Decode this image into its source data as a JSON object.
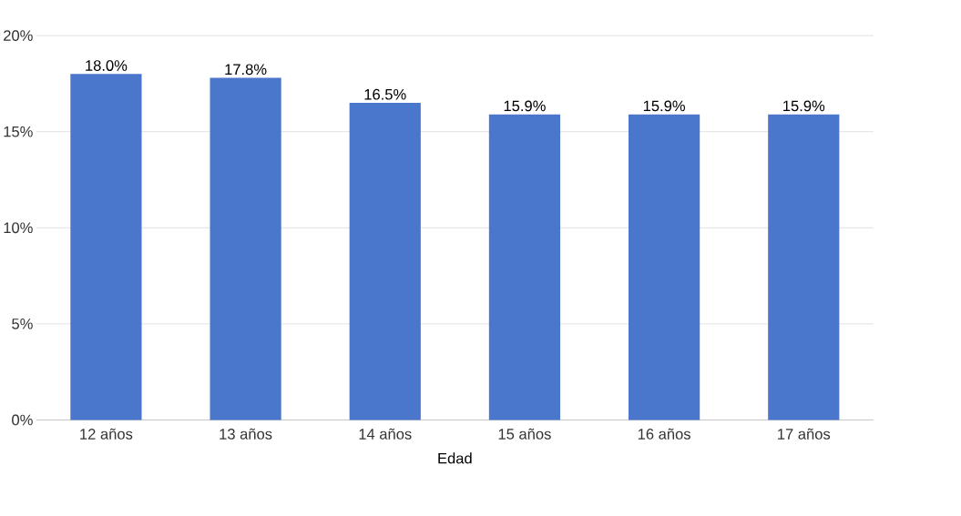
{
  "chart_data": {
    "type": "bar",
    "xlabel": "Edad",
    "categories": [
      "12 años",
      "13 años",
      "14 años",
      "15 años",
      "16 años",
      "17 años"
    ],
    "values": [
      18.0,
      17.8,
      16.5,
      15.9,
      15.9,
      15.9
    ],
    "value_labels": [
      "18.0%",
      "17.8%",
      "16.5%",
      "15.9%",
      "15.9%",
      "15.9%"
    ],
    "color": "#4a77cc",
    "ylim": [
      0,
      20
    ],
    "yticks": [
      {
        "value": 0,
        "label": "0%"
      },
      {
        "value": 5,
        "label": "5%"
      },
      {
        "value": 10,
        "label": "10%"
      },
      {
        "value": 15,
        "label": "15%"
      },
      {
        "value": 20,
        "label": "20%"
      }
    ],
    "grid": "y"
  }
}
